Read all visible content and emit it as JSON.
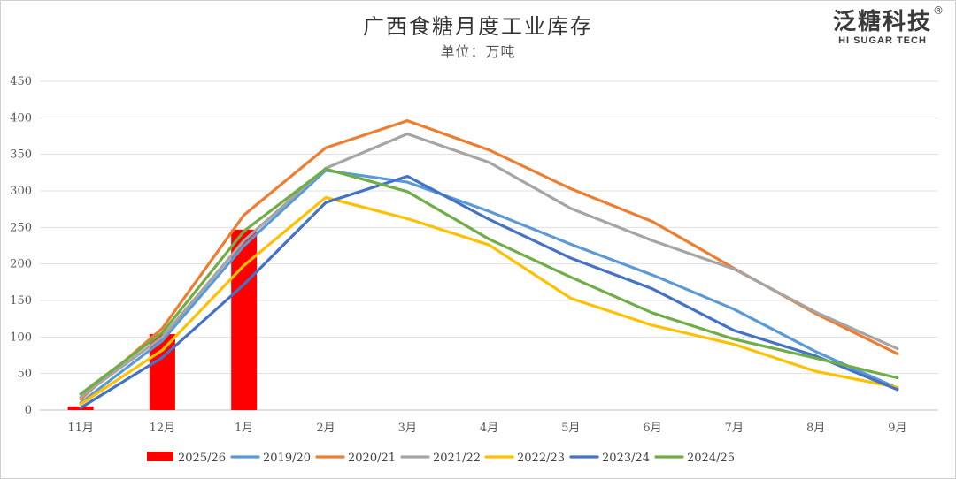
{
  "logo": {
    "main": "泛糖科技",
    "sub": "HI SUGAR TECH",
    "reg": "®"
  },
  "chart_data": {
    "type": "bar+line",
    "title": "广西食糖月度工业库存",
    "subtitle": "单位：万吨",
    "categories": [
      "11月",
      "12月",
      "1月",
      "2月",
      "3月",
      "4月",
      "5月",
      "6月",
      "7月",
      "8月",
      "9月"
    ],
    "ylim": [
      0,
      450
    ],
    "yticks": [
      0,
      50,
      100,
      150,
      200,
      250,
      300,
      350,
      400,
      450
    ],
    "grid": true,
    "legend_position": "bottom",
    "bar_series": {
      "name": "2025/26",
      "color": "#ff0000",
      "values": [
        5,
        104,
        247,
        null,
        null,
        null,
        null,
        null,
        null,
        null,
        null
      ]
    },
    "series": [
      {
        "name": "2019/20",
        "color": "#5b9bd5",
        "values": [
          10,
          95,
          225,
          328,
          312,
          272,
          227,
          185,
          138,
          80,
          30
        ]
      },
      {
        "name": "2020/21",
        "color": "#ed7d31",
        "values": [
          15,
          112,
          267,
          359,
          396,
          356,
          303,
          258,
          194,
          132,
          77
        ]
      },
      {
        "name": "2021/22",
        "color": "#a5a5a5",
        "values": [
          18,
          100,
          232,
          331,
          378,
          339,
          276,
          232,
          193,
          134,
          84
        ]
      },
      {
        "name": "2022/23",
        "color": "#ffc000",
        "values": [
          8,
          82,
          198,
          291,
          262,
          226,
          153,
          116,
          90,
          53,
          31
        ]
      },
      {
        "name": "2023/24",
        "color": "#4472c4",
        "values": [
          3,
          72,
          172,
          284,
          320,
          261,
          208,
          166,
          109,
          74,
          28
        ]
      },
      {
        "name": "2024/25",
        "color": "#70ad47",
        "values": [
          22,
          106,
          245,
          330,
          299,
          234,
          182,
          133,
          97,
          71,
          44
        ]
      }
    ]
  }
}
